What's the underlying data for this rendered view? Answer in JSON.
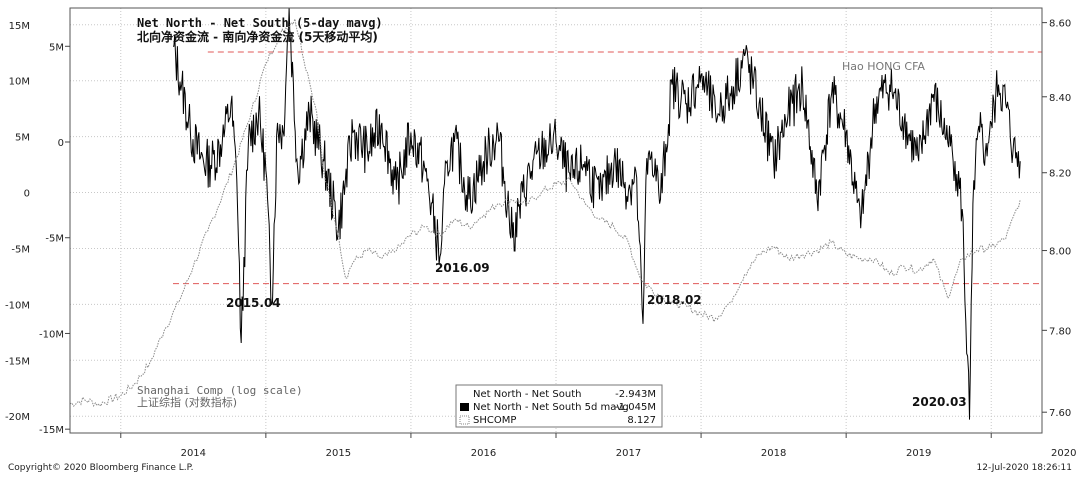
{
  "chart_data": {
    "type": "line",
    "title": "Net North - Net South (5-day mavg)",
    "subtitle": "北向净资金流 - 南向净资金流 (5天移动平均)",
    "x_ticks": [
      "2014",
      "2015",
      "2016",
      "2017",
      "2018",
      "2019",
      "2020"
    ],
    "x_range": [
      2013.65,
      2020.35
    ],
    "y_left_outer": {
      "ticks": [
        "15M",
        "10M",
        "5M",
        "0",
        "-5M",
        "-10M",
        "-15M",
        "-20M"
      ],
      "values": [
        15,
        10,
        5,
        0,
        -5,
        -10,
        -15,
        -20
      ],
      "range": [
        -21.5,
        16.5
      ]
    },
    "y_left_inner": {
      "ticks": [
        "5M",
        "0",
        "-5M",
        "-10M",
        "-15M"
      ],
      "values": [
        5,
        0,
        -5,
        -10,
        -15
      ],
      "range": [
        -15.2,
        7.0
      ]
    },
    "y_right": {
      "ticks": [
        "8.60",
        "8.40",
        "8.20",
        "8.00",
        "7.80",
        "7.60"
      ],
      "values": [
        8.6,
        8.4,
        8.2,
        8.0,
        7.8,
        7.6
      ],
      "range": [
        7.55,
        8.64
      ],
      "scale": "log"
    },
    "reference_lines": [
      {
        "label": "Hao HONG CFA",
        "value_inner_m": 4.7,
        "color": "#e05a5a",
        "style": "dashed"
      },
      {
        "value_inner_m": -7.4,
        "color": "#e05a5a",
        "style": "dashed"
      }
    ],
    "annotations": [
      {
        "text": "2015.04",
        "x": 2014.82
      },
      {
        "text": "2016.09",
        "x": 2016.22
      },
      {
        "text": "2018.02",
        "x": 2017.62
      },
      {
        "text": "2020.03",
        "x": 2019.85
      }
    ],
    "series": [
      {
        "name": "Net North - Net South 5d mavg",
        "color": "#000000",
        "axis": "inner",
        "x": [
          2014.36,
          2014.42,
          2014.48,
          2014.55,
          2014.62,
          2014.7,
          2014.76,
          2014.8,
          2014.83,
          2014.88,
          2014.95,
          2015.0,
          2015.04,
          2015.08,
          2015.12,
          2015.16,
          2015.22,
          2015.3,
          2015.4,
          2015.5,
          2015.6,
          2015.7,
          2015.8,
          2015.9,
          2016.0,
          2016.1,
          2016.2,
          2016.25,
          2016.3,
          2016.4,
          2016.5,
          2016.6,
          2016.7,
          2016.8,
          2016.9,
          2017.0,
          2017.1,
          2017.2,
          2017.3,
          2017.4,
          2017.5,
          2017.55,
          2017.6,
          2017.62,
          2017.66,
          2017.72,
          2017.8,
          2017.9,
          2018.0,
          2018.1,
          2018.2,
          2018.3,
          2018.4,
          2018.5,
          2018.6,
          2018.7,
          2018.8,
          2018.9,
          2019.0,
          2019.1,
          2019.2,
          2019.3,
          2019.4,
          2019.5,
          2019.6,
          2019.7,
          2019.75,
          2019.8,
          2019.85,
          2019.88,
          2019.92,
          2019.96,
          2020.0,
          2020.05,
          2020.1,
          2020.15,
          2020.2
        ],
        "values": [
          5.0,
          3.0,
          0.5,
          -0.8,
          -1.2,
          0.0,
          2.0,
          -2.0,
          -10.5,
          0.0,
          1.5,
          -1.5,
          -8.5,
          1.0,
          0.5,
          7.0,
          -1.5,
          1.5,
          -1.0,
          -4.5,
          0.5,
          -0.5,
          1.0,
          -2.5,
          0.5,
          -1.5,
          -6.0,
          -1.0,
          0.0,
          -3.0,
          -1.0,
          0.5,
          -5.0,
          -2.0,
          -0.5,
          0.0,
          -2.0,
          -1.0,
          -3.0,
          -1.0,
          -2.5,
          -1.5,
          -9.5,
          -2.0,
          -0.5,
          -3.0,
          3.0,
          2.0,
          3.5,
          1.5,
          2.5,
          4.5,
          2.0,
          -1.0,
          1.5,
          3.0,
          -3.0,
          2.5,
          0.5,
          -4.5,
          2.0,
          3.0,
          1.0,
          -1.0,
          2.5,
          0.0,
          -1.0,
          -3.5,
          -14.5,
          -2.0,
          0.5,
          -0.5,
          1.0,
          3.0,
          2.0,
          -0.5,
          -1.0
        ]
      },
      {
        "name": "SHCOMP",
        "color": "#8a8a8a",
        "axis": "right",
        "x": [
          2013.65,
          2013.75,
          2013.85,
          2014.0,
          2014.1,
          2014.2,
          2014.3,
          2014.4,
          2014.5,
          2014.6,
          2014.7,
          2014.8,
          2014.9,
          2015.0,
          2015.1,
          2015.2,
          2015.3,
          2015.35,
          2015.4,
          2015.45,
          2015.5,
          2015.55,
          2015.6,
          2015.7,
          2015.8,
          2015.9,
          2016.0,
          2016.1,
          2016.2,
          2016.3,
          2016.4,
          2016.5,
          2016.6,
          2016.7,
          2016.8,
          2016.9,
          2017.0,
          2017.1,
          2017.2,
          2017.3,
          2017.4,
          2017.5,
          2017.55,
          2017.6,
          2017.7,
          2017.8,
          2017.9,
          2018.0,
          2018.1,
          2018.2,
          2018.3,
          2018.4,
          2018.5,
          2018.6,
          2018.7,
          2018.8,
          2018.9,
          2019.0,
          2019.1,
          2019.2,
          2019.3,
          2019.4,
          2019.5,
          2019.6,
          2019.7,
          2019.8,
          2019.9,
          2020.0,
          2020.1,
          2020.2
        ],
        "values": [
          7.62,
          7.63,
          7.62,
          7.64,
          7.67,
          7.72,
          7.8,
          7.87,
          7.96,
          8.05,
          8.14,
          8.24,
          8.36,
          8.49,
          8.57,
          8.61,
          8.44,
          8.36,
          8.2,
          8.12,
          8.04,
          7.93,
          7.97,
          8.0,
          7.98,
          8.0,
          8.04,
          8.06,
          8.04,
          8.08,
          8.06,
          8.09,
          8.12,
          8.13,
          8.12,
          8.15,
          8.17,
          8.18,
          8.12,
          8.08,
          8.06,
          8.02,
          7.96,
          7.92,
          7.89,
          7.87,
          7.86,
          7.84,
          7.83,
          7.87,
          7.94,
          7.99,
          8.01,
          7.98,
          7.99,
          8.0,
          8.02,
          7.99,
          7.98,
          7.98,
          7.94,
          7.96,
          7.95,
          7.98,
          7.88,
          7.98,
          8.0,
          8.01,
          8.03,
          8.13
        ]
      }
    ],
    "legend": {
      "rows": [
        {
          "label": "Net North - Net South",
          "value": "-2.943M",
          "marker": "none"
        },
        {
          "label": "Net North - Net South 5d mavg",
          "value": "-1.045M",
          "marker": "black"
        },
        {
          "label": "SHCOMP",
          "value": "8.127",
          "marker": "dotted"
        }
      ]
    },
    "log_scale_label": "Shanghai Comp (log scale)",
    "log_scale_label_cn": "上证综指 (对数指标)",
    "footer_left": "Copyright© 2020 Bloomberg Finance L.P.",
    "footer_right": "12-Jul-2020 18:26:11"
  }
}
